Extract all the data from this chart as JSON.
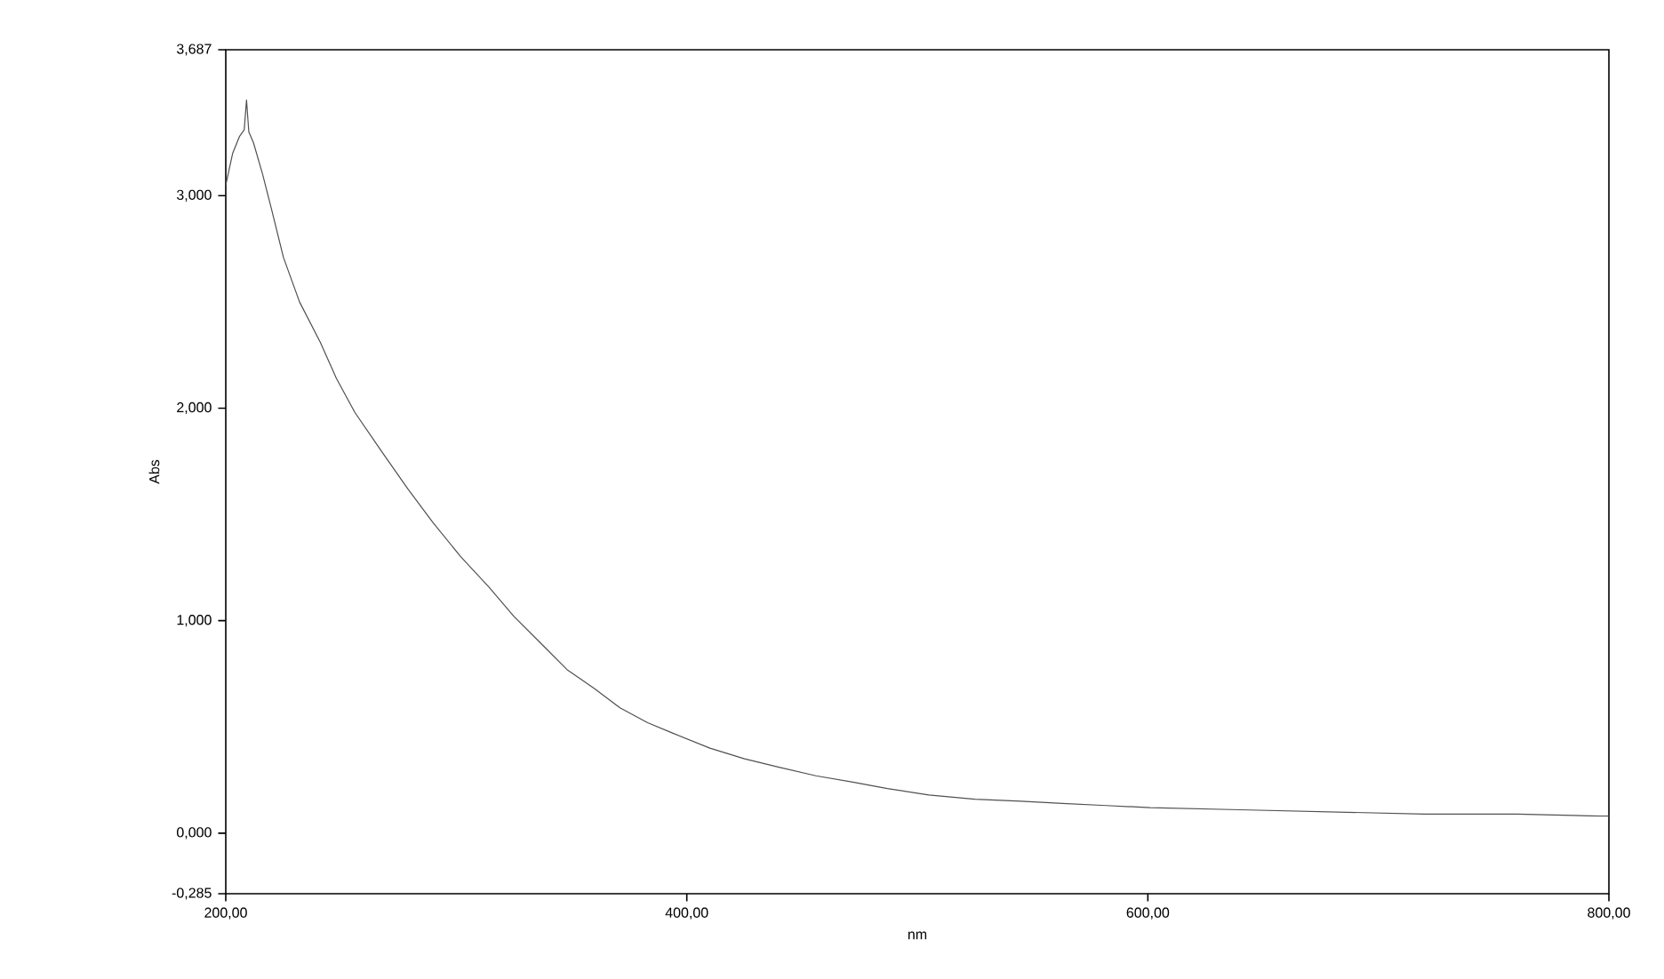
{
  "chart_data": {
    "type": "line",
    "xlabel": "nm",
    "ylabel": "Abs",
    "xlim": [
      200,
      800
    ],
    "ylim": [
      -0.285,
      3.687
    ],
    "xticks": [
      {
        "value": 200,
        "label": "200,00"
      },
      {
        "value": 400,
        "label": "400,00"
      },
      {
        "value": 600,
        "label": "600,00"
      },
      {
        "value": 800,
        "label": "800,00"
      }
    ],
    "yticks": [
      {
        "value": -0.285,
        "label": "-0,285"
      },
      {
        "value": 0,
        "label": "0,000"
      },
      {
        "value": 1,
        "label": "1,000"
      },
      {
        "value": 2,
        "label": "2,000"
      },
      {
        "value": 3,
        "label": "3,000"
      },
      {
        "value": 3.687,
        "label": "3,687"
      }
    ],
    "grid": false,
    "series": [
      {
        "color": "#505050",
        "x": [
          200,
          203,
          206,
          208,
          209,
          210,
          212,
          216,
          220,
          225,
          232,
          241,
          248,
          256,
          268,
          279,
          290,
          302,
          314,
          325,
          337,
          348,
          360,
          371,
          383,
          394,
          410,
          425,
          440,
          456,
          472,
          487,
          505,
          525,
          545,
          563,
          582,
          601,
          640,
          680,
          720,
          760,
          796,
          800
        ],
        "values": [
          3.05,
          3.2,
          3.28,
          3.31,
          3.45,
          3.3,
          3.25,
          3.1,
          2.93,
          2.71,
          2.5,
          2.31,
          2.14,
          1.98,
          1.79,
          1.62,
          1.46,
          1.3,
          1.16,
          1.02,
          0.89,
          0.77,
          0.68,
          0.59,
          0.52,
          0.47,
          0.4,
          0.35,
          0.31,
          0.27,
          0.24,
          0.21,
          0.18,
          0.16,
          0.15,
          0.14,
          0.13,
          0.12,
          0.11,
          0.1,
          0.09,
          0.09,
          0.08,
          0.08
        ]
      }
    ]
  }
}
